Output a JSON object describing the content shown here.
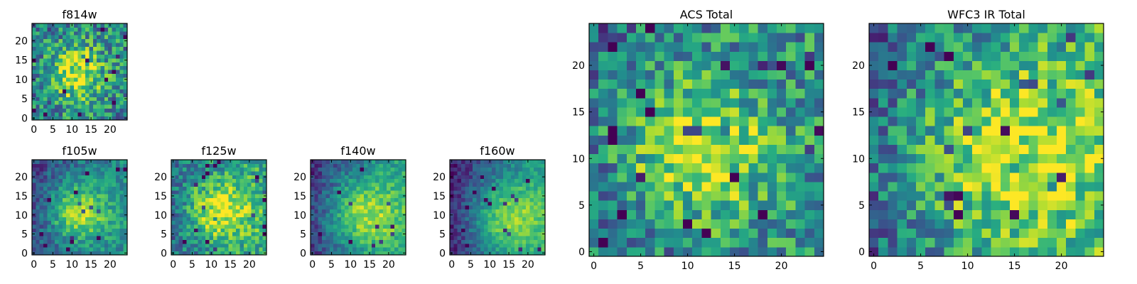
{
  "chart_data": [
    {
      "id": "f814w",
      "type": "heatmap",
      "title": "f814w",
      "grid": 25,
      "xlim": [
        0,
        24
      ],
      "ylim": [
        0,
        24
      ],
      "xticks": [
        0,
        5,
        10,
        15,
        20
      ],
      "yticks": [
        0,
        5,
        10,
        15,
        20
      ],
      "colormap": "viridis",
      "center": [
        11,
        11.5
      ],
      "sigma": 5,
      "peak": 0.9,
      "base": 0.45,
      "noise": 0.3,
      "gradient": 0.05
    },
    {
      "id": "f105w",
      "type": "heatmap",
      "title": "f105w",
      "grid": 25,
      "xlim": [
        0,
        24
      ],
      "ylim": [
        0,
        24
      ],
      "xticks": [
        0,
        5,
        10,
        15,
        20
      ],
      "yticks": [
        0,
        5,
        10,
        15,
        20
      ],
      "colormap": "viridis",
      "center": [
        11.5,
        10.5
      ],
      "sigma": 6,
      "peak": 0.92,
      "base": 0.3,
      "noise": 0.16,
      "gradient": 0.3
    },
    {
      "id": "f125w",
      "type": "heatmap",
      "title": "f125w",
      "grid": 25,
      "xlim": [
        0,
        24
      ],
      "ylim": [
        0,
        24
      ],
      "xticks": [
        0,
        5,
        10,
        15,
        20
      ],
      "yticks": [
        0,
        5,
        10,
        15,
        20
      ],
      "colormap": "viridis",
      "center": [
        12,
        11
      ],
      "sigma": 6,
      "peak": 0.85,
      "base": 0.45,
      "noise": 0.22,
      "gradient": 0.25
    },
    {
      "id": "f140w",
      "type": "heatmap",
      "title": "f140w",
      "grid": 25,
      "xlim": [
        0,
        24
      ],
      "ylim": [
        0,
        24
      ],
      "xticks": [
        0,
        5,
        10,
        15,
        20
      ],
      "yticks": [
        0,
        5,
        10,
        15,
        20
      ],
      "colormap": "viridis",
      "center": [
        13,
        10
      ],
      "sigma": 7,
      "peak": 0.85,
      "base": 0.3,
      "noise": 0.14,
      "gradient": 0.45
    },
    {
      "id": "f160w",
      "type": "heatmap",
      "title": "f160w",
      "grid": 25,
      "xlim": [
        0,
        24
      ],
      "ylim": [
        0,
        24
      ],
      "xticks": [
        0,
        5,
        10,
        15,
        20
      ],
      "yticks": [
        0,
        5,
        10,
        15,
        20
      ],
      "colormap": "viridis",
      "center": [
        14,
        9
      ],
      "sigma": 7,
      "peak": 0.82,
      "base": 0.25,
      "noise": 0.12,
      "gradient": 0.5
    },
    {
      "id": "acs_total",
      "type": "heatmap",
      "title": "ACS Total",
      "grid": 25,
      "xlim": [
        0,
        24
      ],
      "ylim": [
        0,
        24
      ],
      "xticks": [
        0,
        5,
        10,
        15,
        20
      ],
      "yticks": [
        0,
        5,
        10,
        15,
        20
      ],
      "colormap": "viridis",
      "center": [
        11,
        11
      ],
      "sigma": 5,
      "peak": 0.95,
      "base": 0.45,
      "noise": 0.28,
      "gradient": 0.1
    },
    {
      "id": "wfc3_ir_total",
      "type": "heatmap",
      "title": "WFC3 IR Total",
      "grid": 25,
      "xlim": [
        0,
        24
      ],
      "ylim": [
        0,
        24
      ],
      "xticks": [
        0,
        5,
        10,
        15,
        20
      ],
      "yticks": [
        0,
        5,
        10,
        15,
        20
      ],
      "colormap": "viridis",
      "center": [
        14,
        10
      ],
      "sigma": 8,
      "peak": 0.8,
      "base": 0.4,
      "noise": 0.26,
      "gradient": 0.3
    }
  ]
}
